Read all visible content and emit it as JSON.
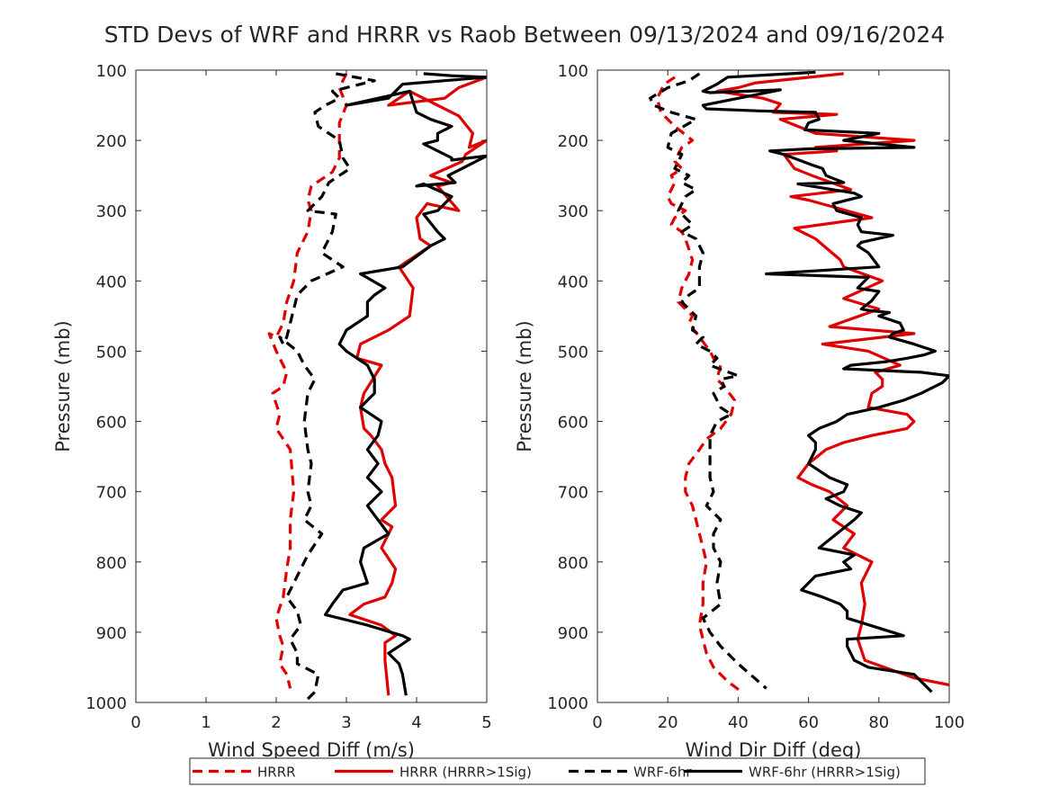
{
  "title": "STD Devs of WRF and HRRR vs Raob Between 09/13/2024 and 09/16/2024",
  "colors": {
    "hrrr": "#e00000",
    "wrf": "#000000",
    "axis": "#262626"
  },
  "legend": {
    "placement": "bottom",
    "entries": [
      {
        "label": "HRRR",
        "color": "#e00000",
        "style": "dashed"
      },
      {
        "label": "HRRR (HRRR>1Sig)",
        "color": "#e00000",
        "style": "solid"
      },
      {
        "label": "WRF-6hr",
        "color": "#000000",
        "style": "dashed"
      },
      {
        "label": "WRF-6hr (HRRR>1Sig)",
        "color": "#000000",
        "style": "solid"
      }
    ]
  },
  "chart_data": [
    {
      "type": "line",
      "xlabel": "Wind Speed Diff (m/s)",
      "ylabel": "Pressure (mb)",
      "xlim": [
        0,
        5
      ],
      "ylim": [
        100,
        1000
      ],
      "y_reversed": true,
      "xticks": [
        0,
        1,
        2,
        3,
        4,
        5
      ],
      "yticks": [
        100,
        200,
        300,
        400,
        500,
        600,
        700,
        800,
        900,
        1000
      ],
      "grid": false,
      "series": [
        {
          "name": "HRRR",
          "color": "#e00000",
          "style": "dashed",
          "x": [
            3.0,
            2.9,
            3.0,
            2.9,
            2.9,
            2.9,
            2.8,
            2.5,
            2.45,
            2.5,
            2.45,
            2.3,
            2.25,
            2.15,
            2.1,
            2.0,
            1.9,
            2.0,
            2.15,
            2.1,
            1.95,
            2.05,
            2.0,
            2.2,
            2.25,
            2.2,
            2.2,
            2.15,
            2.1,
            2.0,
            2.05,
            2.1,
            2.05,
            2.15,
            2.2
          ],
          "y": [
            105,
            125,
            150,
            175,
            200,
            225,
            245,
            265,
            285,
            300,
            330,
            360,
            400,
            430,
            460,
            480,
            475,
            500,
            530,
            550,
            560,
            590,
            610,
            640,
            700,
            740,
            780,
            810,
            850,
            880,
            905,
            920,
            945,
            960,
            980
          ]
        },
        {
          "name": "HRRR (HRRR>1Sig)",
          "color": "#e00000",
          "style": "solid",
          "x": [
            5.0,
            4.6,
            4.4,
            3.6,
            3.9,
            4.3,
            4.6,
            4.8,
            4.75,
            5.0,
            4.7,
            4.65,
            4.2,
            4.5,
            4.3,
            4.6,
            4.15,
            4.0,
            4.05,
            4.2,
            3.75,
            3.95,
            3.9,
            3.6,
            3.2,
            3.15,
            3.5,
            3.25,
            3.2,
            3.25,
            3.35,
            3.5,
            3.55,
            3.65,
            3.7,
            3.5,
            3.65,
            3.5,
            3.7,
            3.65,
            3.55,
            3.25,
            3.05,
            3.5,
            3.7,
            3.55,
            3.55,
            3.6
          ],
          "y": [
            110,
            125,
            140,
            150,
            130,
            150,
            165,
            190,
            210,
            200,
            220,
            230,
            250,
            260,
            265,
            300,
            290,
            310,
            340,
            350,
            380,
            410,
            450,
            470,
            490,
            510,
            520,
            560,
            580,
            610,
            620,
            640,
            660,
            680,
            720,
            740,
            750,
            780,
            810,
            830,
            850,
            860,
            875,
            890,
            905,
            915,
            940,
            990
          ]
        },
        {
          "name": "WRF-6hr",
          "color": "#000000",
          "style": "dashed",
          "x": [
            2.85,
            3.4,
            2.8,
            2.9,
            2.7,
            2.55,
            2.6,
            2.9,
            2.95,
            3.05,
            2.75,
            2.65,
            2.55,
            2.45,
            2.85,
            2.8,
            2.65,
            2.95,
            2.5,
            2.3,
            2.25,
            2.2,
            2.15,
            2.1,
            2.05,
            2.3,
            2.4,
            2.55,
            2.45,
            2.4,
            2.45,
            2.5,
            2.45,
            2.5,
            2.4,
            2.65,
            2.45,
            2.3,
            2.15,
            2.3,
            2.35,
            2.2,
            2.3,
            2.3,
            2.6,
            2.55,
            2.45
          ],
          "y": [
            105,
            115,
            130,
            140,
            150,
            160,
            180,
            200,
            225,
            240,
            260,
            280,
            290,
            300,
            305,
            330,
            360,
            380,
            400,
            420,
            440,
            460,
            480,
            490,
            480,
            500,
            520,
            540,
            560,
            600,
            640,
            660,
            700,
            720,
            740,
            760,
            790,
            820,
            850,
            870,
            890,
            910,
            930,
            945,
            960,
            985,
            995
          ]
        },
        {
          "name": "WRF-6hr (HRRR>1Sig)",
          "color": "#000000",
          "style": "solid",
          "x": [
            4.1,
            4.5,
            5.0,
            4.4,
            3.8,
            3.6,
            3.0,
            3.9,
            4.0,
            4.2,
            4.5,
            4.3,
            4.3,
            4.1,
            4.5,
            4.5,
            5.0,
            4.45,
            4.55,
            4.0,
            4.1,
            4.5,
            4.3,
            4.1,
            4.3,
            4.4,
            4.2,
            3.8,
            3.2,
            3.55,
            3.4,
            3.3,
            3.3,
            3.0,
            2.9,
            3.0,
            3.3,
            3.4,
            3.4,
            3.2,
            3.5,
            3.45,
            3.3,
            3.45,
            3.3,
            3.5,
            3.3,
            3.45,
            3.6,
            3.25,
            3.2,
            3.3,
            2.95,
            2.8,
            2.7,
            3.3,
            3.8,
            3.9,
            3.6,
            3.75,
            3.8,
            3.85
          ],
          "y": [
            105,
            108,
            110,
            115,
            120,
            140,
            150,
            130,
            160,
            170,
            180,
            190,
            200,
            205,
            225,
            228,
            222,
            250,
            260,
            265,
            262,
            280,
            300,
            305,
            330,
            340,
            350,
            380,
            390,
            410,
            420,
            430,
            450,
            470,
            490,
            500,
            520,
            540,
            560,
            580,
            600,
            620,
            640,
            660,
            680,
            700,
            720,
            740,
            760,
            780,
            800,
            830,
            840,
            860,
            875,
            890,
            905,
            910,
            930,
            945,
            960,
            990
          ]
        }
      ]
    },
    {
      "type": "line",
      "xlabel": "Wind Dir Diff (deg)",
      "ylabel": "Pressure (mb)",
      "xlim": [
        0,
        100
      ],
      "ylim": [
        100,
        1000
      ],
      "y_reversed": true,
      "xticks": [
        0,
        20,
        40,
        60,
        80,
        100
      ],
      "yticks": [
        100,
        200,
        300,
        400,
        500,
        600,
        700,
        800,
        900,
        1000
      ],
      "grid": false,
      "series": [
        {
          "name": "HRRR",
          "color": "#e00000",
          "style": "dashed",
          "x": [
            22,
            19,
            18,
            17,
            18,
            22,
            27,
            24,
            22,
            24,
            21,
            22,
            20,
            21,
            25,
            22,
            21,
            24,
            25,
            27,
            26,
            24,
            23,
            27,
            26,
            29,
            32,
            33,
            35,
            34,
            36,
            39,
            38,
            35,
            31,
            29,
            26,
            25,
            25,
            27,
            28,
            29,
            31,
            30,
            30,
            29,
            30,
            31,
            33,
            37,
            41
          ],
          "y": [
            110,
            120,
            130,
            140,
            160,
            180,
            200,
            210,
            230,
            240,
            250,
            260,
            280,
            290,
            300,
            310,
            320,
            330,
            340,
            370,
            390,
            410,
            430,
            450,
            460,
            480,
            500,
            510,
            520,
            540,
            550,
            570,
            590,
            610,
            625,
            640,
            660,
            680,
            700,
            720,
            740,
            760,
            800,
            830,
            860,
            890,
            910,
            930,
            950,
            970,
            985
          ]
        },
        {
          "name": "HRRR (HRRR>1Sig)",
          "color": "#e00000",
          "style": "solid",
          "x": [
            70,
            45,
            40,
            34,
            47,
            52,
            50,
            68,
            52,
            62,
            90,
            62,
            68,
            53,
            56,
            61,
            72,
            55,
            60,
            78,
            56,
            62,
            69,
            70,
            81,
            70,
            80,
            66,
            90,
            64,
            77,
            86,
            79,
            81,
            81,
            78,
            77,
            88,
            90,
            88,
            78,
            70,
            65,
            60,
            57,
            61,
            66,
            71,
            67,
            73,
            70,
            78,
            75,
            76,
            75,
            74,
            76,
            90,
            100
          ],
          "y": [
            105,
            118,
            125,
            130,
            140,
            148,
            160,
            163,
            170,
            190,
            200,
            210,
            215,
            220,
            240,
            250,
            270,
            280,
            285,
            310,
            325,
            340,
            370,
            380,
            400,
            425,
            440,
            465,
            475,
            490,
            500,
            520,
            530,
            540,
            550,
            560,
            580,
            590,
            600,
            610,
            620,
            630,
            640,
            660,
            680,
            690,
            700,
            720,
            740,
            760,
            780,
            800,
            830,
            860,
            890,
            910,
            940,
            965,
            975
          ]
        },
        {
          "name": "WRF-6hr",
          "color": "#000000",
          "style": "dashed",
          "x": [
            29,
            26,
            20,
            15,
            16,
            21,
            28,
            21,
            20,
            24,
            22,
            26,
            24,
            28,
            25,
            23,
            27,
            24,
            28,
            30,
            29,
            29,
            29,
            26,
            24,
            28,
            27,
            30,
            28,
            32,
            34,
            32,
            40,
            35,
            36,
            33,
            35,
            38,
            34,
            32,
            32,
            32,
            33,
            31,
            35,
            33,
            33,
            35,
            34,
            35,
            30,
            32,
            35,
            40,
            48
          ],
          "y": [
            105,
            115,
            125,
            140,
            150,
            160,
            170,
            190,
            210,
            220,
            240,
            250,
            260,
            270,
            280,
            300,
            320,
            330,
            340,
            360,
            380,
            400,
            410,
            420,
            430,
            450,
            470,
            480,
            490,
            500,
            510,
            520,
            535,
            540,
            550,
            560,
            580,
            590,
            600,
            620,
            650,
            680,
            700,
            720,
            740,
            760,
            780,
            800,
            830,
            860,
            880,
            900,
            920,
            945,
            980
          ]
        },
        {
          "name": "WRF-6hr (HRRR>1Sig)",
          "color": "#000000",
          "style": "solid",
          "x": [
            62,
            37,
            34,
            30,
            32,
            52,
            30,
            31,
            46,
            62,
            63,
            60,
            59,
            80,
            70,
            90,
            60,
            49,
            53,
            61,
            64,
            65,
            70,
            57,
            73,
            75,
            67,
            68,
            75,
            74,
            75,
            84,
            75,
            74,
            77,
            80,
            48,
            77,
            74,
            76,
            80,
            78,
            75,
            77,
            83,
            80,
            86,
            87,
            84,
            83,
            90,
            96,
            93,
            88,
            82,
            72,
            70,
            92,
            100,
            98,
            92,
            87,
            80,
            71,
            68,
            63,
            60,
            62,
            62,
            61,
            60,
            63,
            66,
            71,
            70,
            65,
            69,
            75,
            73,
            68,
            63,
            73,
            70,
            72,
            62,
            58,
            64,
            69,
            71,
            71,
            87,
            71,
            71,
            73,
            77,
            90,
            95
          ],
          "y": [
            103,
            110,
            120,
            130,
            132,
            128,
            150,
            155,
            158,
            160,
            170,
            175,
            185,
            190,
            200,
            210,
            212,
            215,
            220,
            235,
            240,
            250,
            260,
            262,
            275,
            280,
            290,
            300,
            310,
            320,
            330,
            335,
            345,
            350,
            360,
            380,
            390,
            395,
            410,
            412,
            415,
            428,
            440,
            442,
            445,
            450,
            460,
            470,
            475,
            480,
            490,
            500,
            505,
            510,
            515,
            520,
            525,
            530,
            535,
            545,
            560,
            570,
            580,
            590,
            600,
            610,
            620,
            630,
            640,
            650,
            660,
            670,
            680,
            690,
            700,
            710,
            720,
            730,
            740,
            760,
            780,
            790,
            800,
            810,
            820,
            840,
            850,
            860,
            870,
            880,
            905,
            910,
            920,
            940,
            950,
            960,
            985
          ]
        }
      ]
    }
  ]
}
